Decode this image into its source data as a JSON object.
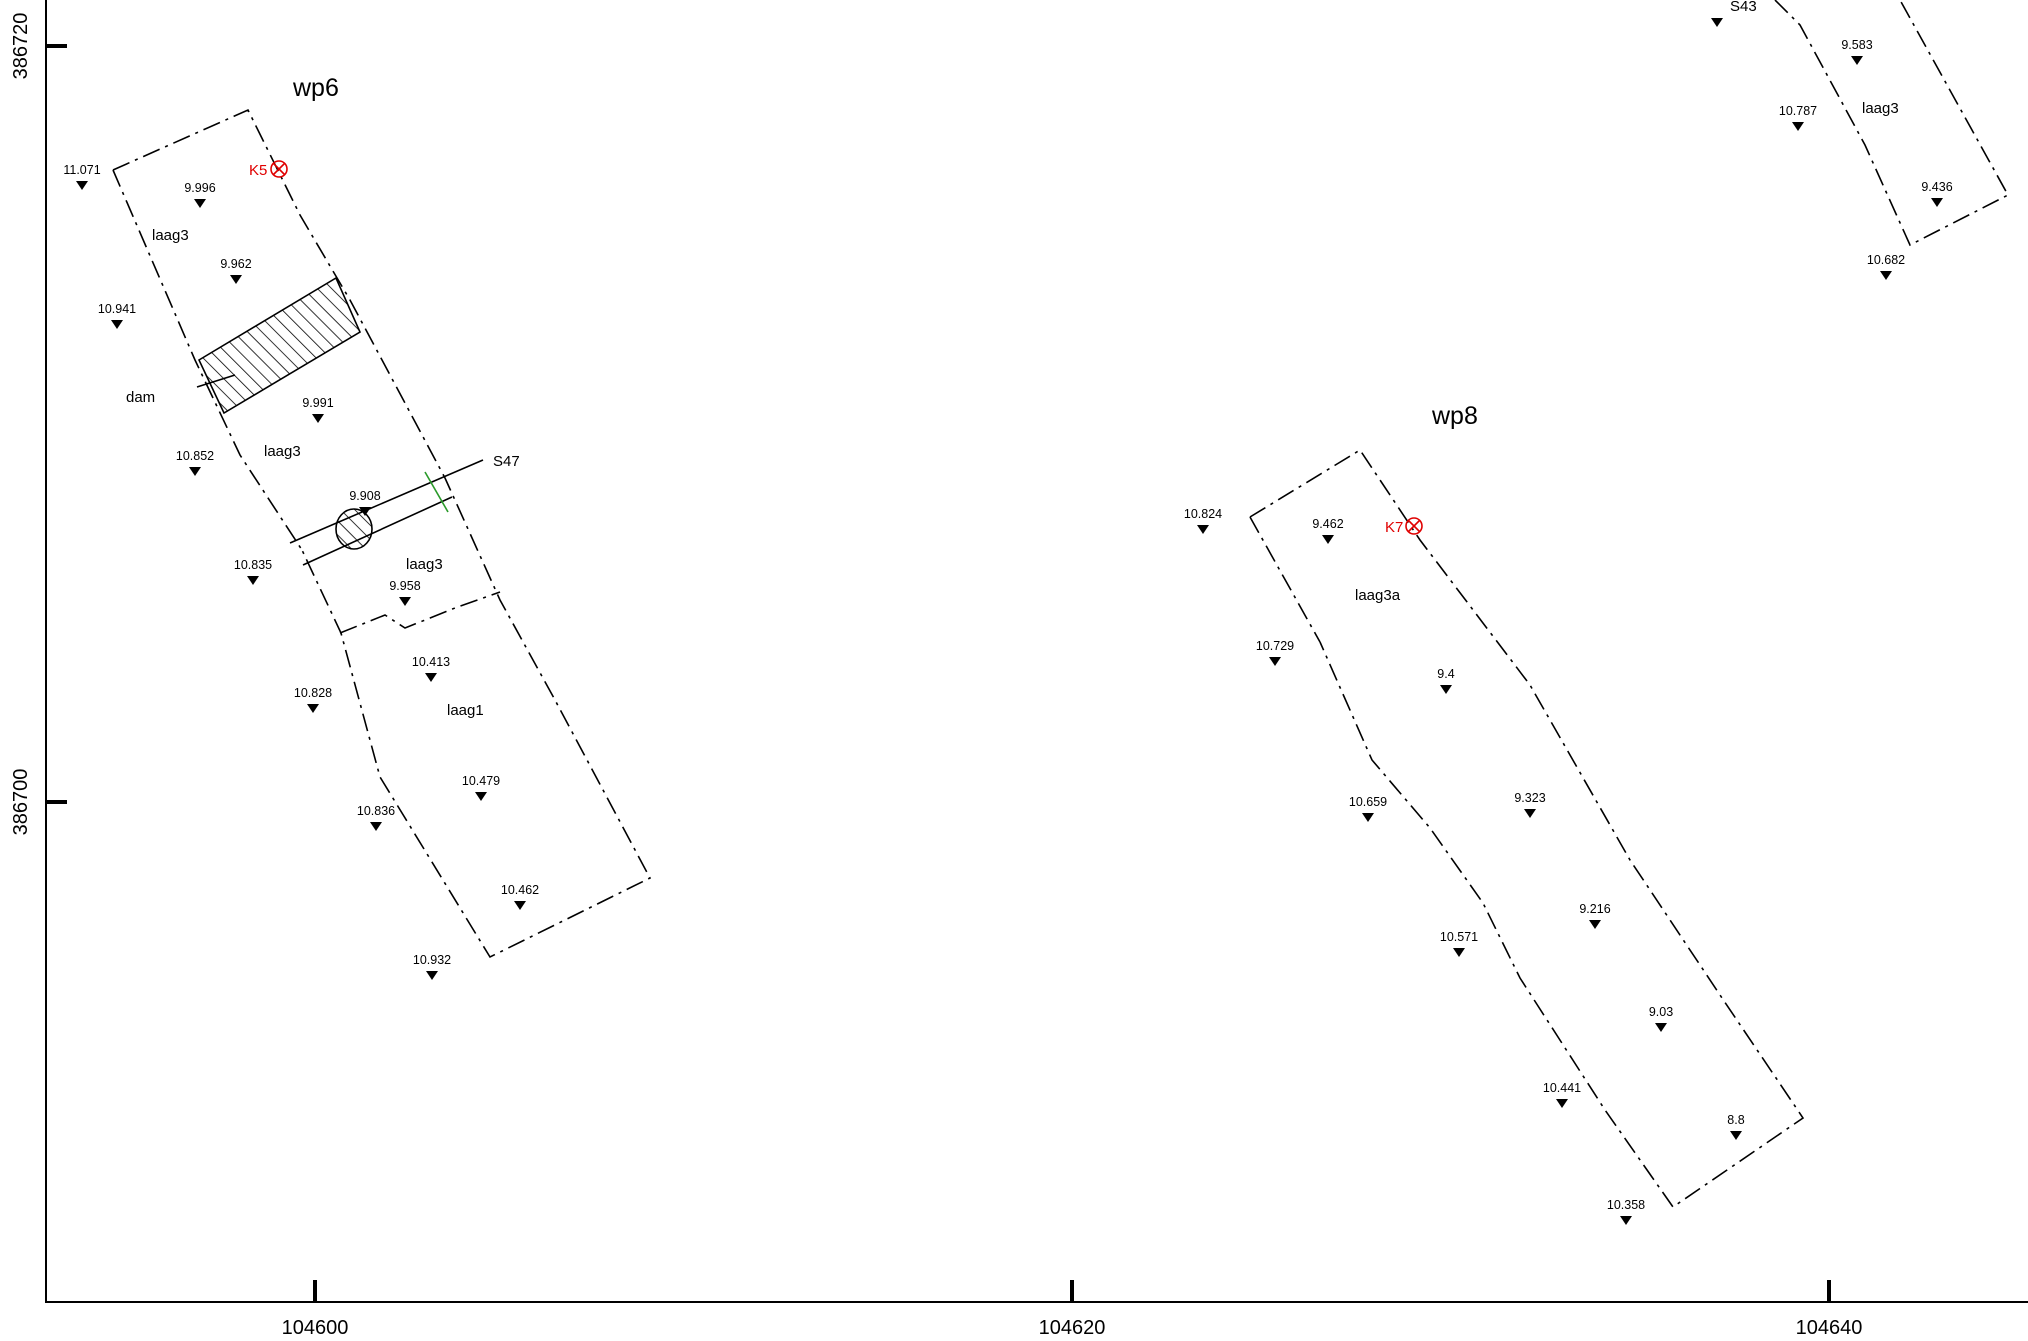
{
  "axes": {
    "x_ticks": [
      "104600",
      "104620",
      "104640"
    ],
    "y_ticks": [
      "386720",
      "386700"
    ]
  },
  "colors": {
    "ink": "#000000",
    "marker": "#e00000",
    "section_tick": "#2a9a2a"
  },
  "trenches": [
    {
      "name": "wp6",
      "layers": [
        "laag3",
        "laag3",
        "laag3",
        "laag1"
      ],
      "feature": "dam",
      "marker": "K5",
      "section": "S47"
    },
    {
      "name": "wp8",
      "layers": [
        "laag3a"
      ],
      "marker": "K7"
    },
    {
      "layers": [
        "laag3"
      ],
      "section": "S43"
    }
  ],
  "levels": {
    "wp6": [
      "11.071",
      "9.996",
      "9.962",
      "10.941",
      "9.991",
      "10.852",
      "9.908",
      "10.835",
      "9.958",
      "10.413",
      "10.828",
      "10.479",
      "10.836",
      "10.462",
      "10.932"
    ],
    "wp8": [
      "10.824",
      "9.462",
      "10.729",
      "9.4",
      "10.659",
      "9.323",
      "10.571",
      "9.216",
      "9.03",
      "10.441",
      "8.8",
      "10.358"
    ],
    "top_right": [
      "9.583",
      "10.787",
      "9.436",
      "10.682"
    ]
  }
}
